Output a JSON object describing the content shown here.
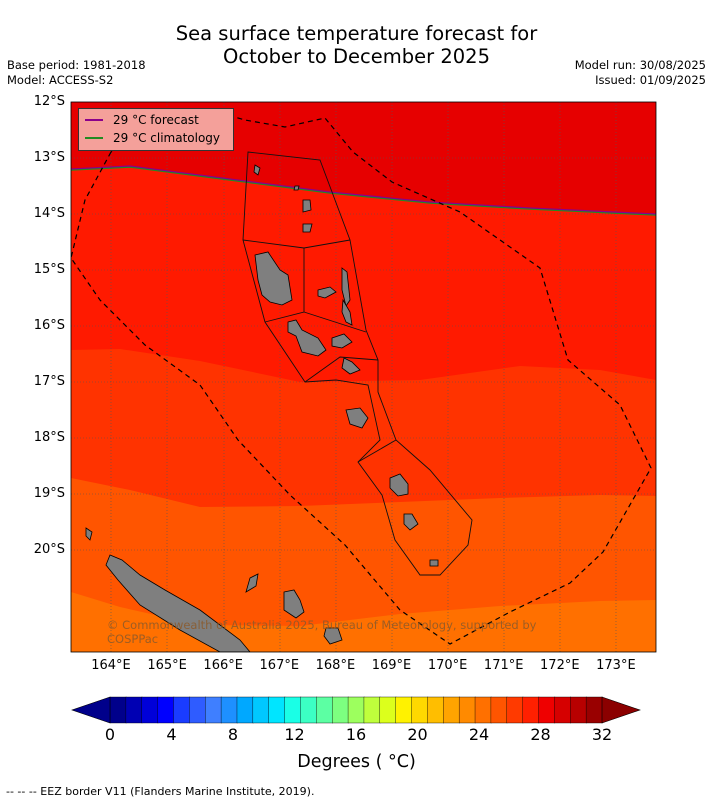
{
  "title_line1": "Sea surface temperature forecast for",
  "title_line2": "October to December 2025",
  "base_period": "Base period: 1981-2018",
  "model": "Model: ACCESS-S2",
  "model_run": "Model run: 30/08/2025",
  "issued": "Issued: 01/09/2025",
  "legend": {
    "forecast_label": "29 °C  forecast",
    "forecast_color": "#8b008b",
    "climatology_label": "29 °C  climatology",
    "climatology_color": "#228b22"
  },
  "copyright": "© Commonwealth of Australia 2025, Bureau of Meteorology, supported by COSPPac",
  "lat_labels": [
    "12°S",
    "13°S",
    "14°S",
    "15°S",
    "16°S",
    "17°S",
    "18°S",
    "19°S",
    "20°S"
  ],
  "lon_labels": [
    "164°E",
    "165°E",
    "166°E",
    "167°E",
    "168°E",
    "169°E",
    "170°E",
    "171°E",
    "172°E",
    "173°E"
  ],
  "colorbar": {
    "tick_labels": [
      "0",
      "4",
      "8",
      "12",
      "16",
      "20",
      "24",
      "28",
      "32"
    ],
    "title": "Degrees ( °C)",
    "colors": [
      "#00008b",
      "#0000b3",
      "#0000d9",
      "#0000ff",
      "#1a3cff",
      "#2f5cff",
      "#3f7fff",
      "#1e90ff",
      "#00a8ff",
      "#00c8ff",
      "#00e5ff",
      "#1affe6",
      "#3cffc4",
      "#5cffa3",
      "#7dff80",
      "#9dff5e",
      "#bfff3c",
      "#dcff1c",
      "#fff200",
      "#ffd800",
      "#ffbe00",
      "#ffa400",
      "#ff8a00",
      "#ff7000",
      "#ff5500",
      "#ff3a00",
      "#ff2000",
      "#ef0000",
      "#d60000",
      "#b80000",
      "#990000"
    ],
    "under_color": "#00008b",
    "over_color": "#8b0000"
  },
  "field_colors": {
    "band_29_30": "#e60000",
    "band_28_29": "#ff1a00",
    "band_27_28": "#ff3300",
    "band_26_27": "#ff5500",
    "band_25_26": "#ff7000"
  },
  "footer": "--  --  -- EEZ border V11 (Flanders Marine Institute, 2019)."
}
